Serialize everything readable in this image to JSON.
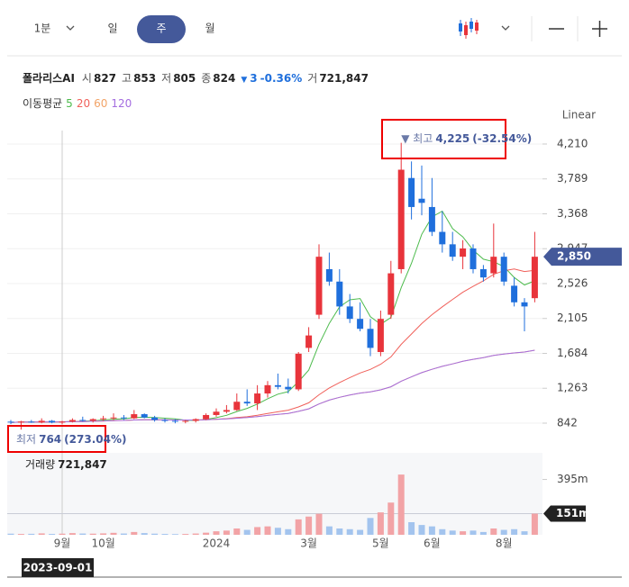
{
  "toolbar": {
    "interval": "1분",
    "tabs": [
      "일",
      "주",
      "월"
    ],
    "selected": 1
  },
  "quote": {
    "name": "폴라리스AI",
    "items": [
      {
        "label": "시",
        "value": "827"
      },
      {
        "label": "고",
        "value": "853"
      },
      {
        "label": "저",
        "value": "805"
      },
      {
        "label": "종",
        "value": "824"
      }
    ],
    "change": {
      "arrow": "▼",
      "value": "3",
      "pct": "-0.36%"
    },
    "volume": {
      "label": "거",
      "value": "721,847"
    }
  },
  "chart_data": {
    "type": "candlestick",
    "scale_label": "Linear",
    "ma_label": "이동평균",
    "ma_periods": [
      5,
      20,
      60,
      120
    ],
    "ma_colors": [
      "#4cbb4c",
      "#f0605a",
      "#f2a468",
      "#a46de0"
    ],
    "up_color": "#e8343b",
    "down_color": "#1f6fdc",
    "categories": [
      null,
      null,
      null,
      null,
      null,
      "9월",
      null,
      null,
      null,
      "10월",
      null,
      null,
      null,
      null,
      null,
      null,
      null,
      null,
      null,
      null,
      "2024",
      null,
      null,
      null,
      null,
      null,
      null,
      null,
      null,
      "3월",
      null,
      null,
      null,
      null,
      null,
      null,
      "5월",
      null,
      null,
      null,
      null,
      "6월",
      null,
      null,
      null,
      null,
      null,
      null,
      "8월",
      null,
      null,
      null
    ],
    "open": [
      860,
      850,
      860,
      850,
      870,
      850,
      860,
      880,
      870,
      890,
      900,
      910,
      900,
      950,
      910,
      880,
      870,
      860,
      870,
      890,
      940,
      980,
      1000,
      1100,
      1080,
      1200,
      1300,
      1280,
      1250,
      1750,
      2150,
      2700,
      2550,
      2250,
      2100,
      1980,
      1700,
      2150,
      2700,
      3800,
      3550,
      3450,
      3150,
      3000,
      2850,
      2950,
      2700,
      2650,
      2850,
      2500,
      2300,
      2350
    ],
    "high": [
      880,
      870,
      880,
      900,
      880,
      870,
      900,
      920,
      900,
      930,
      960,
      940,
      1000,
      960,
      930,
      900,
      890,
      880,
      900,
      960,
      1020,
      1060,
      1200,
      1250,
      1300,
      1350,
      1440,
      1380,
      1700,
      2000,
      3000,
      2900,
      2700,
      2400,
      2300,
      2100,
      2200,
      2800,
      4225,
      4000,
      3950,
      3800,
      3400,
      3150,
      3050,
      3000,
      2750,
      3250,
      2900,
      2600,
      2350,
      3150
    ],
    "low": [
      830,
      764,
      845,
      840,
      840,
      830,
      850,
      860,
      850,
      870,
      880,
      880,
      890,
      900,
      860,
      850,
      840,
      840,
      850,
      880,
      920,
      960,
      990,
      1050,
      1000,
      1150,
      1250,
      1200,
      1230,
      1700,
      2100,
      2500,
      2150,
      2050,
      1950,
      1650,
      1650,
      2100,
      2650,
      3300,
      3350,
      3100,
      2900,
      2800,
      2700,
      2650,
      2550,
      2600,
      2500,
      2250,
      1950,
      2300
    ],
    "close": [
      850,
      860,
      850,
      870,
      850,
      860,
      880,
      870,
      890,
      900,
      910,
      900,
      950,
      910,
      880,
      870,
      860,
      870,
      890,
      940,
      980,
      1000,
      1100,
      1080,
      1200,
      1300,
      1280,
      1250,
      1680,
      1900,
      2850,
      2550,
      2250,
      2100,
      1980,
      1750,
      2100,
      2650,
      3900,
      3450,
      3500,
      3150,
      3000,
      2850,
      2950,
      2700,
      2600,
      2850,
      2550,
      2300,
      2250,
      2850
    ],
    "ylim": [
      516,
      4427
    ],
    "yticks": [
      {
        "value": 4210,
        "label": "4,210"
      },
      {
        "value": 3789,
        "label": "3,789"
      },
      {
        "value": 3368,
        "label": "3,368"
      },
      {
        "value": 2947,
        "label": "2,947"
      },
      {
        "value": 2526,
        "label": "2,526"
      },
      {
        "value": 2105,
        "label": "2,105"
      },
      {
        "value": 1684,
        "label": "1,684"
      },
      {
        "value": 1263,
        "label": "1,263"
      },
      {
        "value": 842,
        "label": "842"
      }
    ],
    "last_price": {
      "value": 2850,
      "label": "2,850"
    },
    "high_note": {
      "index": 38,
      "text": "▼ 최고",
      "value": "4,225",
      "pct": "(-32.54%)"
    },
    "low_note": {
      "index": 1,
      "text": "최저",
      "value": "764",
      "pct": "(273.04%)"
    },
    "crosshair": {
      "index": 5,
      "label": "2023-09-01"
    },
    "volume": {
      "title": "거래량",
      "total": "721,847",
      "values": [
        8,
        6,
        7,
        10,
        6,
        8,
        12,
        9,
        8,
        10,
        14,
        9,
        20,
        12,
        8,
        6,
        5,
        6,
        9,
        15,
        25,
        30,
        45,
        35,
        55,
        60,
        50,
        40,
        110,
        130,
        150,
        60,
        45,
        40,
        35,
        120,
        160,
        230,
        430,
        90,
        70,
        60,
        40,
        30,
        25,
        30,
        20,
        45,
        35,
        40,
        25,
        151
      ],
      "ylim": [
        0,
        540
      ],
      "yticks": [
        {
          "value": 395,
          "label": "395m"
        }
      ],
      "last": {
        "value": 151,
        "label": "151m"
      }
    }
  }
}
